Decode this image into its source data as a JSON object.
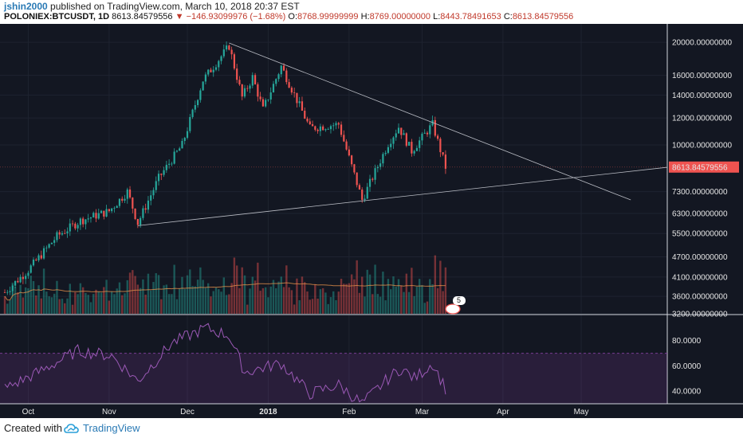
{
  "header": {
    "author": "jshin2000",
    "published": "published on TradingView.com, March 10, 2018 20:37 EST",
    "symbol": "POLONIEX:BTCUSDT, 1D",
    "last": "8613.84579556",
    "change": "−146.93099976 (−1.68%)",
    "open_label": "O:",
    "open": "8768.99999999",
    "high_label": "H:",
    "high": "8769.00000000",
    "low_label": "L:",
    "low": "8443.78491653",
    "close_label": "C:",
    "close": "8613.84579556"
  },
  "footer": {
    "created_with": "Created with",
    "brand": "TradingView"
  },
  "colors": {
    "background": "#131722",
    "up": "#26a69a",
    "down": "#ef5350",
    "rsi": "#8e44ad",
    "ma": "#e08f4a",
    "price_badge": "#ef5350"
  },
  "chart_data": [
    {
      "type": "candlestick",
      "title": "POLONIEX:BTCUSDT, 1D",
      "y_scale": "log",
      "y_ticks": [
        "20000.00000000",
        "16000.00000000",
        "14000.00000000",
        "12000.00000000",
        "10000.00000000",
        "7300.00000000",
        "6300.00000000",
        "5500.00000000",
        "4700.00000000",
        "4100.00000000",
        "3600.00000000",
        "3200.00000000"
      ],
      "y_tick_values": [
        20000,
        16000,
        14000,
        12000,
        10000,
        7300,
        6300,
        5500,
        4700,
        4100,
        3600,
        3200
      ],
      "ylim": [
        3200,
        21000
      ],
      "x_ticks": [
        "Oct",
        "Nov",
        "Dec",
        "2018",
        "Feb",
        "Mar",
        "Apr",
        "May"
      ],
      "last_price_label": "8613.84579556",
      "last_price": 8613.85,
      "events_badge": "5",
      "close_path": [
        {
          "date": "2017-09-22",
          "close": 3700
        },
        {
          "date": "2017-10-01",
          "close": 4300
        },
        {
          "date": "2017-10-12",
          "close": 5400
        },
        {
          "date": "2017-10-21",
          "close": 6000
        },
        {
          "date": "2017-11-01",
          "close": 6400
        },
        {
          "date": "2017-11-08",
          "close": 7300
        },
        {
          "date": "2017-11-12",
          "close": 5900
        },
        {
          "date": "2017-11-20",
          "close": 8000
        },
        {
          "date": "2017-11-29",
          "close": 10000
        },
        {
          "date": "2017-12-07",
          "close": 15500
        },
        {
          "date": "2017-12-17",
          "close": 19500
        },
        {
          "date": "2017-12-22",
          "close": 13800
        },
        {
          "date": "2017-12-26",
          "close": 15800
        },
        {
          "date": "2017-12-30",
          "close": 12700
        },
        {
          "date": "2018-01-06",
          "close": 17000
        },
        {
          "date": "2018-01-17",
          "close": 11200
        },
        {
          "date": "2018-01-28",
          "close": 11500
        },
        {
          "date": "2018-02-06",
          "close": 6900
        },
        {
          "date": "2018-02-16",
          "close": 10100
        },
        {
          "date": "2018-02-20",
          "close": 11300
        },
        {
          "date": "2018-02-25",
          "close": 9600
        },
        {
          "date": "2018-03-05",
          "close": 11500
        },
        {
          "date": "2018-03-10",
          "close": 8614
        }
      ],
      "trendlines": [
        {
          "name": "descending",
          "from": {
            "date": "2017-12-17",
            "price": 19900
          },
          "to": {
            "date": "2018-05-20",
            "price": 6900
          }
        },
        {
          "name": "ascending",
          "from": {
            "date": "2017-11-12",
            "price": 5800
          },
          "to": {
            "date": "2018-06-03",
            "price": 8600
          }
        }
      ]
    },
    {
      "type": "bar",
      "title": "Volume",
      "series": [
        {
          "values_relative": "bars below candles"
        }
      ]
    },
    {
      "type": "line",
      "title": "RSI",
      "y_ticks": [
        "80.0000",
        "60.0000",
        "40.0000"
      ],
      "y_tick_values": [
        80,
        60,
        40
      ],
      "ylim": [
        30,
        100
      ],
      "band": [
        30,
        70
      ],
      "values_path": [
        {
          "date": "2017-09-22",
          "value": 42
        },
        {
          "date": "2017-10-05",
          "value": 55
        },
        {
          "date": "2017-10-20",
          "value": 72
        },
        {
          "date": "2017-11-02",
          "value": 68
        },
        {
          "date": "2017-11-12",
          "value": 48
        },
        {
          "date": "2017-11-25",
          "value": 78
        },
        {
          "date": "2017-12-08",
          "value": 90
        },
        {
          "date": "2017-12-17",
          "value": 84
        },
        {
          "date": "2017-12-23",
          "value": 55
        },
        {
          "date": "2018-01-06",
          "value": 62
        },
        {
          "date": "2018-01-17",
          "value": 38
        },
        {
          "date": "2018-01-28",
          "value": 45
        },
        {
          "date": "2018-02-06",
          "value": 30
        },
        {
          "date": "2018-02-16",
          "value": 50
        },
        {
          "date": "2018-02-21",
          "value": 58
        },
        {
          "date": "2018-02-26",
          "value": 50
        },
        {
          "date": "2018-03-05",
          "value": 62
        },
        {
          "date": "2018-03-10",
          "value": 42
        }
      ]
    }
  ]
}
